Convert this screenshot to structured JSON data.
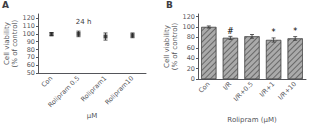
{
  "chart_data": [
    {
      "type": "scatter",
      "title": "A",
      "annotation": "24 h",
      "categories": [
        "Con",
        "Rolipram 0.5",
        "Rolipram1",
        "Rolipram10"
      ],
      "values": [
        99.5,
        99.8,
        96.5,
        98.0
      ],
      "errors": [
        2.0,
        3.5,
        4.5,
        3.0
      ],
      "ylabel": "Cell viability\n(% of control)",
      "xlabel": "μM",
      "ylim": [
        50,
        125
      ],
      "yticks": [
        50,
        60,
        70,
        80,
        90,
        100,
        110,
        120
      ],
      "color": "#222222",
      "marker": "square",
      "grid": false
    },
    {
      "type": "bar",
      "title": "B",
      "categories": [
        "Con",
        "I/R",
        "I/R+0.5",
        "I/R+1",
        "I/R+10"
      ],
      "values": [
        100,
        79,
        82,
        75,
        78
      ],
      "errors": [
        2.0,
        3.0,
        3.5,
        4.0,
        3.5
      ],
      "significance": [
        null,
        "#",
        null,
        "*",
        "*"
      ],
      "ylabel": "Cell viability\n(% of control)",
      "xlabel": "Rolipram (μM)",
      "ylim": [
        0,
        125
      ],
      "yticks": [
        0,
        20,
        40,
        60,
        80,
        100,
        120
      ],
      "color": "#aaaaaa",
      "grid": false
    }
  ]
}
